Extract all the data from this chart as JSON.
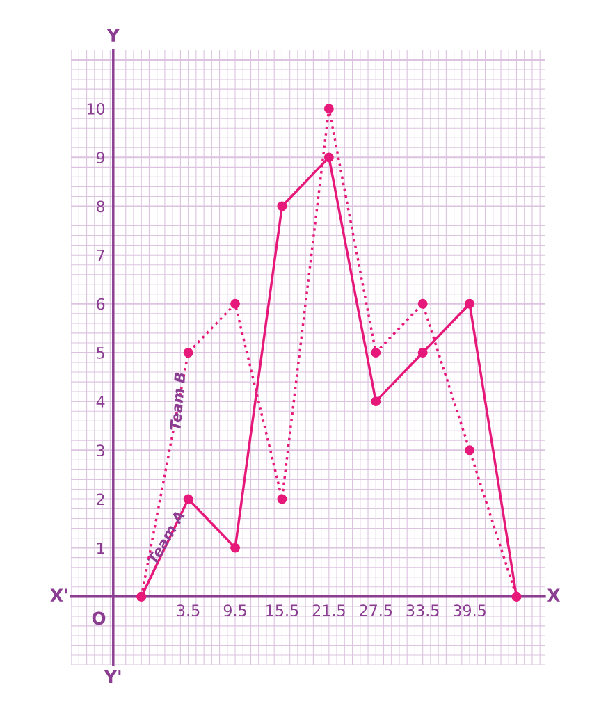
{
  "chart_data": {
    "type": "line",
    "categories": [
      null,
      "3.5",
      "9.5",
      "15.5",
      "21.5",
      "27.5",
      "33.5",
      "39.5",
      null
    ],
    "series": [
      {
        "name": "Team A",
        "color": "#e6197a",
        "line_style": "solid",
        "values": [
          0,
          2,
          1,
          8,
          9,
          4,
          5,
          6,
          0
        ]
      },
      {
        "name": "Team B",
        "color": "#e6197a",
        "line_style": "dotted",
        "values": [
          0,
          5,
          6,
          2,
          10,
          5,
          6,
          3,
          0
        ]
      }
    ],
    "ylim": [
      -1.4,
      11.2
    ],
    "yticks": [
      1,
      2,
      3,
      4,
      5,
      6,
      7,
      8,
      9,
      10
    ],
    "grid": true,
    "marker": "circle",
    "legend": false,
    "annotations": [
      "X'",
      "X",
      "Y",
      "Y'",
      "O"
    ]
  }
}
